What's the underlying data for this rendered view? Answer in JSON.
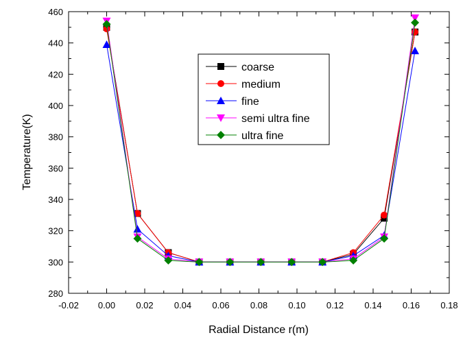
{
  "chart_data": {
    "type": "line",
    "xlabel": "Radial Distance r(m)",
    "ylabel": "Temperature(K)",
    "xlim": [
      -0.02,
      0.18
    ],
    "ylim": [
      280,
      460
    ],
    "xticks": [
      -0.02,
      0.0,
      0.02,
      0.04,
      0.06,
      0.08,
      0.1,
      0.12,
      0.14,
      0.16,
      0.18
    ],
    "xtick_labels": [
      "-0.02",
      "0.00",
      "0.02",
      "0.04",
      "0.06",
      "0.08",
      "0.10",
      "0.12",
      "0.14",
      "0.16",
      "0.18"
    ],
    "yticks": [
      280,
      300,
      320,
      340,
      360,
      380,
      400,
      420,
      440,
      460
    ],
    "ytick_labels": [
      "280",
      "300",
      "320",
      "340",
      "360",
      "380",
      "400",
      "420",
      "440",
      "460"
    ],
    "grid": false,
    "legend_position": "upper-center",
    "x": [
      0.0,
      0.0162,
      0.0324,
      0.0486,
      0.0648,
      0.081,
      0.0972,
      0.1134,
      0.1296,
      0.1458,
      0.162
    ],
    "series": [
      {
        "name": "coarse",
        "color": "#000000",
        "marker": "square",
        "values": [
          450,
          331,
          306,
          300,
          300,
          300,
          300,
          300,
          305,
          328,
          447
        ]
      },
      {
        "name": "medium",
        "color": "#ff0000",
        "marker": "circle",
        "values": [
          449,
          331,
          306,
          300,
          300,
          300,
          300,
          300,
          306,
          330,
          447
        ]
      },
      {
        "name": "fine",
        "color": "#0000ff",
        "marker": "triangle-up",
        "values": [
          439,
          321,
          304,
          300,
          300,
          300,
          300,
          300,
          304,
          317,
          435
        ]
      },
      {
        "name": "semi ultra fine",
        "color": "#ff00ff",
        "marker": "triangle-down",
        "values": [
          454,
          316,
          302,
          300,
          300,
          300,
          300,
          300,
          302,
          316,
          456
        ]
      },
      {
        "name": "ultra fine",
        "color": "#008000",
        "marker": "diamond",
        "values": [
          452,
          315,
          301,
          300,
          300,
          300,
          300,
          300,
          301,
          315,
          453
        ]
      }
    ]
  }
}
